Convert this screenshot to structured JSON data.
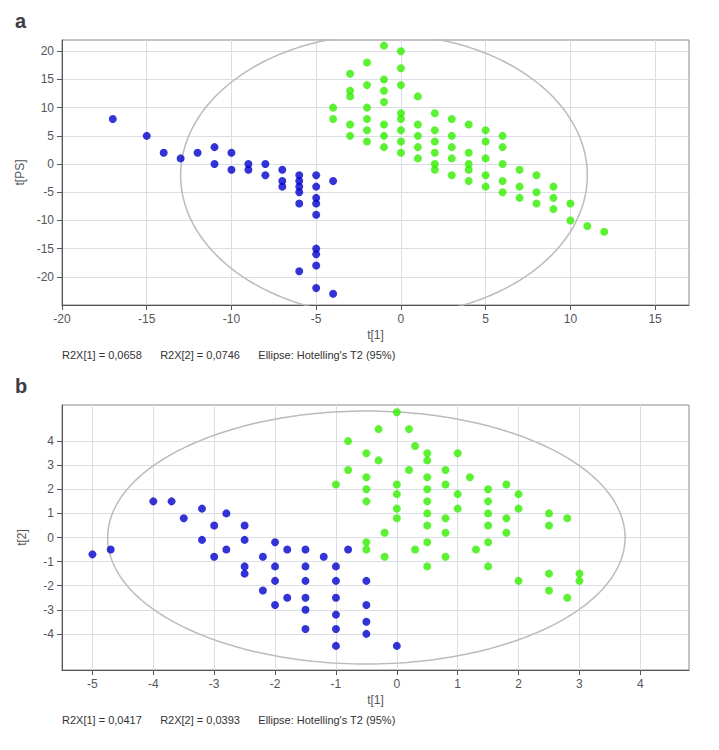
{
  "chart_data": [
    {
      "type": "scatter",
      "title": "a",
      "xlabel": "t[1]",
      "ylabel": "t[PS]",
      "annotations": [
        "R2X[1] = 0,0658      R2X[2] = 0,0746      Ellipse: Hotelling's T2 (95%)"
      ],
      "xlim": [
        -20,
        17
      ],
      "ylim": [
        -25,
        22
      ],
      "xticks": [
        -20,
        -15,
        -10,
        -5,
        0,
        5,
        10,
        15
      ],
      "yticks": [
        -20,
        -15,
        -10,
        -5,
        0,
        5,
        10,
        15,
        20
      ],
      "grid": true,
      "ellipse": {
        "cx": -1,
        "cy": -2,
        "width": 24,
        "height": 50,
        "angle": 0,
        "color": "#bbbbbb"
      },
      "series": [
        {
          "color": "#33ee00",
          "marker": "circle",
          "x": [
            -1,
            0,
            -2,
            0,
            -3,
            -1,
            -2,
            0,
            -3,
            -1,
            -3,
            -1,
            1,
            -4,
            -2,
            0,
            2,
            -4,
            -2,
            0,
            3,
            -3,
            -1,
            1,
            4,
            -2,
            0,
            2,
            5,
            -3,
            -1,
            1,
            3,
            6,
            -2,
            0,
            2,
            5,
            -1,
            1,
            3,
            6,
            0,
            2,
            4,
            1,
            3,
            5,
            2,
            4,
            6,
            2,
            4,
            7,
            3,
            5,
            8,
            4,
            6,
            5,
            7,
            9,
            6,
            8,
            7,
            9,
            8,
            10,
            9,
            10,
            11,
            12
          ],
          "values": [
            21,
            20,
            18,
            17,
            16,
            15,
            14,
            14,
            13,
            13,
            12,
            11,
            12,
            10,
            10,
            9,
            9,
            8,
            8,
            8,
            8,
            7,
            7,
            7,
            7,
            6,
            6,
            6,
            6,
            5,
            5,
            5,
            5,
            5,
            4,
            4,
            4,
            4,
            3,
            3,
            3,
            3,
            2,
            2,
            2,
            1,
            1,
            1,
            0,
            0,
            0,
            -1,
            -1,
            -1,
            -2,
            -2,
            -2,
            -3,
            -3,
            -4,
            -4,
            -4,
            -5,
            -5,
            -6,
            -6,
            -7,
            -7,
            -8,
            -10,
            -11,
            -12
          ]
        },
        {
          "color": "#0000cc",
          "marker": "circle",
          "x": [
            -17,
            -15,
            -14,
            -13,
            -12,
            -11,
            -10,
            -11,
            -10,
            -9,
            -8,
            -9,
            -8,
            -7,
            -6,
            -7,
            -6,
            -5,
            -4,
            -7,
            -6,
            -5,
            -6,
            -5,
            -6,
            -5,
            -5,
            -5,
            -5,
            -5,
            -6,
            -5,
            -4
          ],
          "values": [
            8,
            5,
            2,
            1,
            2,
            3,
            2,
            0,
            -1,
            0,
            0,
            -1,
            -2,
            -1,
            -2,
            -3,
            -3,
            -2,
            -3,
            -4,
            -4,
            -4,
            -5,
            -6,
            -7,
            -7,
            -9,
            -15,
            -16,
            -18,
            -19,
            -22,
            -23
          ]
        }
      ]
    },
    {
      "type": "scatter",
      "title": "b",
      "xlabel": "t[1]",
      "ylabel": "t[2]",
      "annotations": [
        "R2X[1] = 0,0417      R2X[2] = 0,0393      Ellipse: Hotelling's T2 (95%)"
      ],
      "xlim": [
        -5.5,
        4.8
      ],
      "ylim": [
        -5.5,
        5.5
      ],
      "xticks": [
        -5,
        -4,
        -3,
        -2,
        -1,
        0,
        1,
        2,
        3,
        4
      ],
      "yticks": [
        -4,
        -3,
        -2,
        -1,
        0,
        1,
        2,
        3,
        4
      ],
      "grid": true,
      "ellipse": {
        "cx": -0.5,
        "cy": 0,
        "width": 8.5,
        "height": 10.5,
        "angle": 0,
        "color": "#bbbbbb"
      },
      "series": [
        {
          "color": "#33ee00",
          "marker": "circle",
          "x": [
            0,
            -0.3,
            0.2,
            -0.8,
            0.3,
            -0.5,
            0.5,
            1.0,
            -0.3,
            0.5,
            -0.8,
            0.2,
            0.8,
            -0.5,
            0.5,
            1.2,
            -1.0,
            0.0,
            0.8,
            1.8,
            -0.5,
            0.5,
            1.5,
            0.0,
            1.0,
            2.0,
            -0.5,
            0.5,
            1.5,
            0.0,
            1.0,
            2.0,
            0.5,
            1.5,
            2.5,
            0.0,
            0.8,
            1.8,
            2.8,
            0.5,
            1.5,
            2.5,
            -0.2,
            0.8,
            1.8,
            -0.5,
            0.5,
            1.5,
            -0.5,
            0.3,
            1.3,
            -0.2,
            0.8,
            0.5,
            1.5,
            2.5,
            3.0,
            2.0,
            3.0,
            2.5,
            2.8
          ],
          "values": [
            5.2,
            4.5,
            4.5,
            4.0,
            3.8,
            3.5,
            3.5,
            3.5,
            3.2,
            3.2,
            2.8,
            2.8,
            2.8,
            2.5,
            2.5,
            2.5,
            2.2,
            2.2,
            2.2,
            2.2,
            2.0,
            2.0,
            2.0,
            1.8,
            1.8,
            1.8,
            1.5,
            1.5,
            1.5,
            1.2,
            1.2,
            1.2,
            1.0,
            1.0,
            1.0,
            0.8,
            0.8,
            0.8,
            0.8,
            0.5,
            0.5,
            0.5,
            0.2,
            0.2,
            0.2,
            -0.2,
            -0.2,
            -0.2,
            -0.5,
            -0.5,
            -0.5,
            -0.8,
            -0.8,
            -1.2,
            -1.2,
            -1.5,
            -1.5,
            -1.8,
            -1.8,
            -2.2,
            -2.5
          ]
        },
        {
          "color": "#0000cc",
          "marker": "circle",
          "x": [
            -5.0,
            -4.7,
            -4.0,
            -3.7,
            -3.5,
            -3.2,
            -3.0,
            -2.8,
            -3.2,
            -2.5,
            -2.8,
            -2.5,
            -3.0,
            -2.2,
            -2.0,
            -1.8,
            -2.5,
            -2.0,
            -1.5,
            -1.2,
            -1.5,
            -1.0,
            -0.8,
            -2.0,
            -1.5,
            -1.0,
            -0.5,
            -2.2,
            -1.8,
            -1.5,
            -1.0,
            -0.5,
            -2.0,
            -1.5,
            -1.0,
            -0.5,
            -1.5,
            -1.0,
            -0.5,
            -1.0,
            0.0,
            -2.5
          ],
          "values": [
            -0.7,
            -0.5,
            1.5,
            1.5,
            0.8,
            1.2,
            0.5,
            1.0,
            -0.1,
            -0.1,
            -0.5,
            0.5,
            -0.8,
            -0.8,
            -0.2,
            -0.5,
            -1.2,
            -1.2,
            -0.5,
            -0.8,
            -1.2,
            -1.2,
            -0.5,
            -1.8,
            -1.8,
            -1.8,
            -1.8,
            -2.2,
            -2.5,
            -2.5,
            -2.5,
            -2.8,
            -2.8,
            -3.0,
            -3.2,
            -3.5,
            -3.8,
            -3.8,
            -4.0,
            -4.5,
            -4.5,
            -1.5
          ]
        }
      ]
    }
  ]
}
